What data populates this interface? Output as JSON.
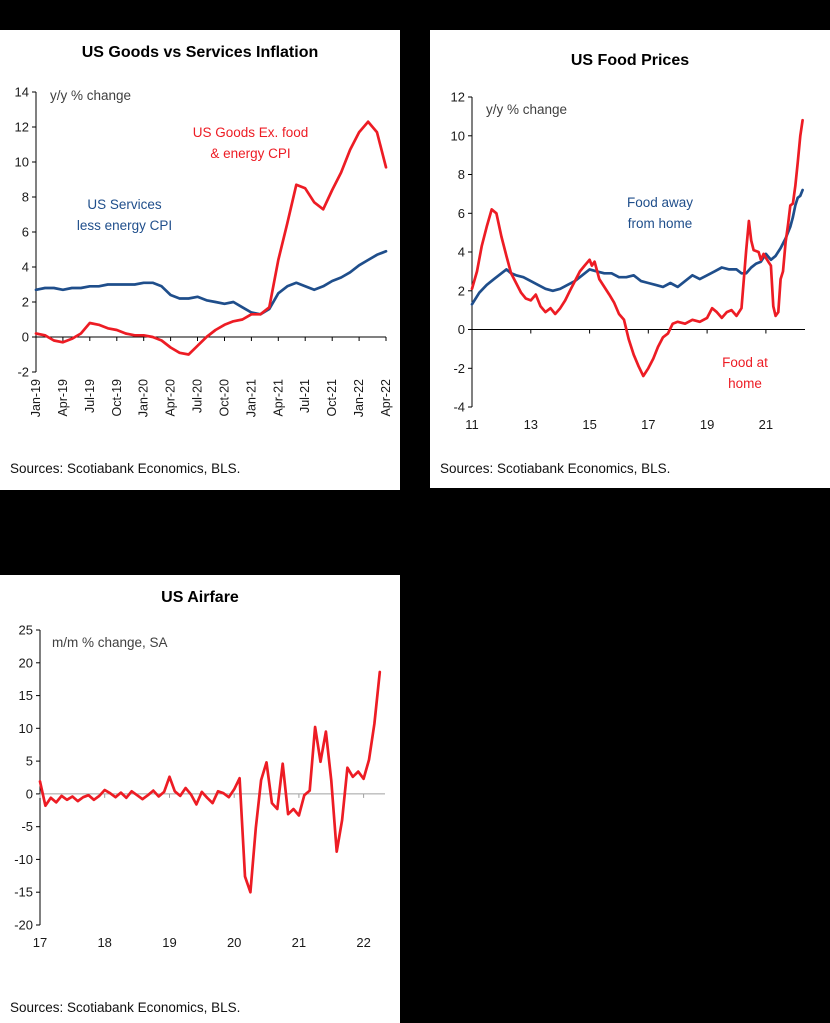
{
  "colors": {
    "red": "#ed1c24",
    "blue": "#1f4e8b",
    "axis": "#000000",
    "zero_gray": "#a0a0a0"
  },
  "chart_data": [
    {
      "type": "line",
      "title": "US Goods vs Services Inflation",
      "annotation": "y/y % change",
      "source": "Sources: Scotiabank Economics, BLS.",
      "y_axis": {
        "min": -2,
        "max": 14,
        "step": 2
      },
      "x_axis": {
        "min": 0,
        "max": 39,
        "ticks": [
          {
            "v": 0,
            "label": "Jan-19"
          },
          {
            "v": 3,
            "label": "Apr-19"
          },
          {
            "v": 6,
            "label": "Jul-19"
          },
          {
            "v": 9,
            "label": "Oct-19"
          },
          {
            "v": 12,
            "label": "Jan-20"
          },
          {
            "v": 15,
            "label": "Apr-20"
          },
          {
            "v": 18,
            "label": "Jul-20"
          },
          {
            "v": 21,
            "label": "Oct-20"
          },
          {
            "v": 24,
            "label": "Jan-21"
          },
          {
            "v": 27,
            "label": "Apr-21"
          },
          {
            "v": 30,
            "label": "Jul-21"
          },
          {
            "v": 33,
            "label": "Oct-21"
          },
          {
            "v": 36,
            "label": "Jan-22"
          },
          {
            "v": 39,
            "label": "Apr-22"
          }
        ]
      },
      "series": [
        {
          "name": "US Services less energy CPI",
          "color": "blue",
          "x_start": 0,
          "x_step": 1,
          "values": [
            2.7,
            2.8,
            2.8,
            2.7,
            2.8,
            2.8,
            2.9,
            2.9,
            3.0,
            3.0,
            3.0,
            3.0,
            3.1,
            3.1,
            2.9,
            2.4,
            2.2,
            2.2,
            2.3,
            2.1,
            2.0,
            1.9,
            2.0,
            1.7,
            1.4,
            1.3,
            1.6,
            2.5,
            2.9,
            3.1,
            2.9,
            2.7,
            2.9,
            3.2,
            3.4,
            3.7,
            4.1,
            4.4,
            4.7,
            4.9
          ]
        },
        {
          "name": "US Goods Ex. food & energy CPI",
          "color": "red",
          "x_start": 0,
          "x_step": 1,
          "values": [
            0.2,
            0.1,
            -0.2,
            -0.3,
            -0.1,
            0.2,
            0.8,
            0.7,
            0.5,
            0.4,
            0.2,
            0.1,
            0.1,
            0.0,
            -0.2,
            -0.6,
            -0.9,
            -1.0,
            -0.5,
            0.0,
            0.4,
            0.7,
            0.9,
            1.0,
            1.3,
            1.3,
            1.7,
            4.4,
            6.5,
            8.7,
            8.5,
            7.7,
            7.3,
            8.4,
            9.4,
            10.7,
            11.7,
            12.3,
            11.7,
            9.7
          ]
        }
      ],
      "series_labels": [
        {
          "color": "red",
          "lines": [
            "US Goods Ex. food",
            "& energy CPI"
          ]
        },
        {
          "color": "blue",
          "lines": [
            "US Services",
            "less energy CPI"
          ]
        }
      ]
    },
    {
      "type": "line",
      "title": "US Food Prices",
      "annotation": "y/y % change",
      "source": "Sources: Scotiabank Economics, BLS.",
      "y_axis": {
        "min": -4,
        "max": 12,
        "step": 2
      },
      "x_axis": {
        "min": 2011,
        "max": 2022.33,
        "ticks": [
          {
            "v": 2011,
            "label": "11"
          },
          {
            "v": 2013,
            "label": "13"
          },
          {
            "v": 2015,
            "label": "15"
          },
          {
            "v": 2017,
            "label": "17"
          },
          {
            "v": 2019,
            "label": "19"
          },
          {
            "v": 2021,
            "label": "21"
          }
        ]
      },
      "series": [
        {
          "name": "Food away from home",
          "color": "blue",
          "points": [
            [
              2011.0,
              1.3
            ],
            [
              2011.25,
              1.9
            ],
            [
              2011.5,
              2.3
            ],
            [
              2011.75,
              2.6
            ],
            [
              2012.0,
              2.9
            ],
            [
              2012.17,
              3.1
            ],
            [
              2012.33,
              2.9
            ],
            [
              2012.5,
              2.8
            ],
            [
              2012.75,
              2.7
            ],
            [
              2013.0,
              2.5
            ],
            [
              2013.25,
              2.3
            ],
            [
              2013.5,
              2.1
            ],
            [
              2013.75,
              2.0
            ],
            [
              2014.0,
              2.1
            ],
            [
              2014.25,
              2.3
            ],
            [
              2014.5,
              2.5
            ],
            [
              2014.75,
              2.8
            ],
            [
              2015.0,
              3.1
            ],
            [
              2015.25,
              3.0
            ],
            [
              2015.5,
              2.9
            ],
            [
              2015.75,
              2.9
            ],
            [
              2016.0,
              2.7
            ],
            [
              2016.25,
              2.7
            ],
            [
              2016.5,
              2.8
            ],
            [
              2016.75,
              2.5
            ],
            [
              2017.0,
              2.4
            ],
            [
              2017.25,
              2.3
            ],
            [
              2017.5,
              2.2
            ],
            [
              2017.75,
              2.4
            ],
            [
              2018.0,
              2.2
            ],
            [
              2018.25,
              2.5
            ],
            [
              2018.5,
              2.8
            ],
            [
              2018.75,
              2.6
            ],
            [
              2019.0,
              2.8
            ],
            [
              2019.25,
              3.0
            ],
            [
              2019.5,
              3.2
            ],
            [
              2019.75,
              3.1
            ],
            [
              2020.0,
              3.1
            ],
            [
              2020.17,
              2.9
            ],
            [
              2020.33,
              2.9
            ],
            [
              2020.5,
              3.2
            ],
            [
              2020.67,
              3.4
            ],
            [
              2020.83,
              3.5
            ],
            [
              2021.0,
              3.9
            ],
            [
              2021.17,
              3.6
            ],
            [
              2021.33,
              3.8
            ],
            [
              2021.5,
              4.2
            ],
            [
              2021.67,
              4.7
            ],
            [
              2021.83,
              5.3
            ],
            [
              2021.92,
              5.8
            ],
            [
              2022.0,
              6.4
            ],
            [
              2022.08,
              6.8
            ],
            [
              2022.17,
              6.9
            ],
            [
              2022.25,
              7.2
            ]
          ]
        },
        {
          "name": "Food at home",
          "color": "red",
          "points": [
            [
              2011.0,
              2.1
            ],
            [
              2011.17,
              3.0
            ],
            [
              2011.33,
              4.3
            ],
            [
              2011.5,
              5.3
            ],
            [
              2011.67,
              6.2
            ],
            [
              2011.83,
              6.0
            ],
            [
              2012.0,
              4.8
            ],
            [
              2012.17,
              3.8
            ],
            [
              2012.33,
              2.9
            ],
            [
              2012.5,
              2.4
            ],
            [
              2012.67,
              1.9
            ],
            [
              2012.83,
              1.6
            ],
            [
              2013.0,
              1.5
            ],
            [
              2013.17,
              1.8
            ],
            [
              2013.33,
              1.2
            ],
            [
              2013.5,
              0.9
            ],
            [
              2013.67,
              1.1
            ],
            [
              2013.83,
              0.8
            ],
            [
              2014.0,
              1.1
            ],
            [
              2014.17,
              1.5
            ],
            [
              2014.33,
              2.0
            ],
            [
              2014.5,
              2.5
            ],
            [
              2014.67,
              3.0
            ],
            [
              2014.83,
              3.3
            ],
            [
              2015.0,
              3.6
            ],
            [
              2015.08,
              3.3
            ],
            [
              2015.17,
              3.5
            ],
            [
              2015.33,
              2.6
            ],
            [
              2015.5,
              2.2
            ],
            [
              2015.67,
              1.8
            ],
            [
              2015.83,
              1.4
            ],
            [
              2016.0,
              0.8
            ],
            [
              2016.17,
              0.5
            ],
            [
              2016.33,
              -0.5
            ],
            [
              2016.5,
              -1.3
            ],
            [
              2016.67,
              -1.9
            ],
            [
              2016.83,
              -2.4
            ],
            [
              2017.0,
              -2.0
            ],
            [
              2017.17,
              -1.5
            ],
            [
              2017.33,
              -0.9
            ],
            [
              2017.5,
              -0.4
            ],
            [
              2017.67,
              -0.2
            ],
            [
              2017.83,
              0.3
            ],
            [
              2018.0,
              0.4
            ],
            [
              2018.25,
              0.3
            ],
            [
              2018.5,
              0.5
            ],
            [
              2018.75,
              0.4
            ],
            [
              2019.0,
              0.6
            ],
            [
              2019.17,
              1.1
            ],
            [
              2019.33,
              0.9
            ],
            [
              2019.5,
              0.6
            ],
            [
              2019.67,
              0.9
            ],
            [
              2019.83,
              1.0
            ],
            [
              2020.0,
              0.7
            ],
            [
              2020.17,
              1.1
            ],
            [
              2020.33,
              4.1
            ],
            [
              2020.42,
              5.6
            ],
            [
              2020.5,
              4.6
            ],
            [
              2020.58,
              4.1
            ],
            [
              2020.75,
              4.0
            ],
            [
              2020.83,
              3.6
            ],
            [
              2020.92,
              3.9
            ],
            [
              2021.0,
              3.7
            ],
            [
              2021.08,
              3.5
            ],
            [
              2021.17,
              3.3
            ],
            [
              2021.25,
              1.2
            ],
            [
              2021.33,
              0.7
            ],
            [
              2021.42,
              0.9
            ],
            [
              2021.5,
              2.6
            ],
            [
              2021.58,
              3.0
            ],
            [
              2021.67,
              4.5
            ],
            [
              2021.75,
              5.4
            ],
            [
              2021.83,
              6.4
            ],
            [
              2021.92,
              6.5
            ],
            [
              2022.0,
              7.4
            ],
            [
              2022.08,
              8.6
            ],
            [
              2022.17,
              10.0
            ],
            [
              2022.25,
              10.8
            ]
          ]
        }
      ],
      "series_labels": [
        {
          "color": "blue",
          "lines": [
            "Food away",
            "from home"
          ]
        },
        {
          "color": "red",
          "lines": [
            "Food at",
            "home"
          ]
        }
      ]
    },
    {
      "type": "line",
      "title": "US Airfare",
      "annotation": "m/m % change, SA",
      "source": "Sources: Scotiabank Economics, BLS.",
      "y_axis": {
        "min": -20,
        "max": 25,
        "step": 5
      },
      "x_axis": {
        "min": 2017,
        "max": 2022.33,
        "ticks": [
          {
            "v": 2017,
            "label": "17"
          },
          {
            "v": 2018,
            "label": "18"
          },
          {
            "v": 2019,
            "label": "19"
          },
          {
            "v": 2020,
            "label": "20"
          },
          {
            "v": 2021,
            "label": "21"
          },
          {
            "v": 2022,
            "label": "22"
          }
        ]
      },
      "series": [
        {
          "name": "US Airfare",
          "color": "red",
          "x_start": 2017,
          "x_step": 0.08333,
          "values": [
            1.9,
            -1.8,
            -0.6,
            -1.3,
            -0.3,
            -0.9,
            -0.4,
            -1.1,
            -0.5,
            -0.2,
            -0.9,
            -0.3,
            0.6,
            0.1,
            -0.5,
            0.2,
            -0.6,
            0.4,
            -0.2,
            -0.8,
            -0.2,
            0.5,
            -0.4,
            0.3,
            2.6,
            0.4,
            -0.3,
            0.9,
            -0.1,
            -1.6,
            0.3,
            -0.6,
            -1.4,
            0.4,
            0.1,
            -0.5,
            0.7,
            2.4,
            -12.6,
            -15.0,
            -5.2,
            2.1,
            4.8,
            -1.4,
            -2.3,
            4.6,
            -3.1,
            -2.3,
            -3.3,
            -0.2,
            0.5,
            10.2,
            4.9,
            9.5,
            2.0,
            -8.8,
            -4.0,
            4.0,
            2.6,
            3.4,
            2.3,
            5.2,
            10.7,
            18.6
          ]
        }
      ],
      "series_labels": []
    }
  ]
}
